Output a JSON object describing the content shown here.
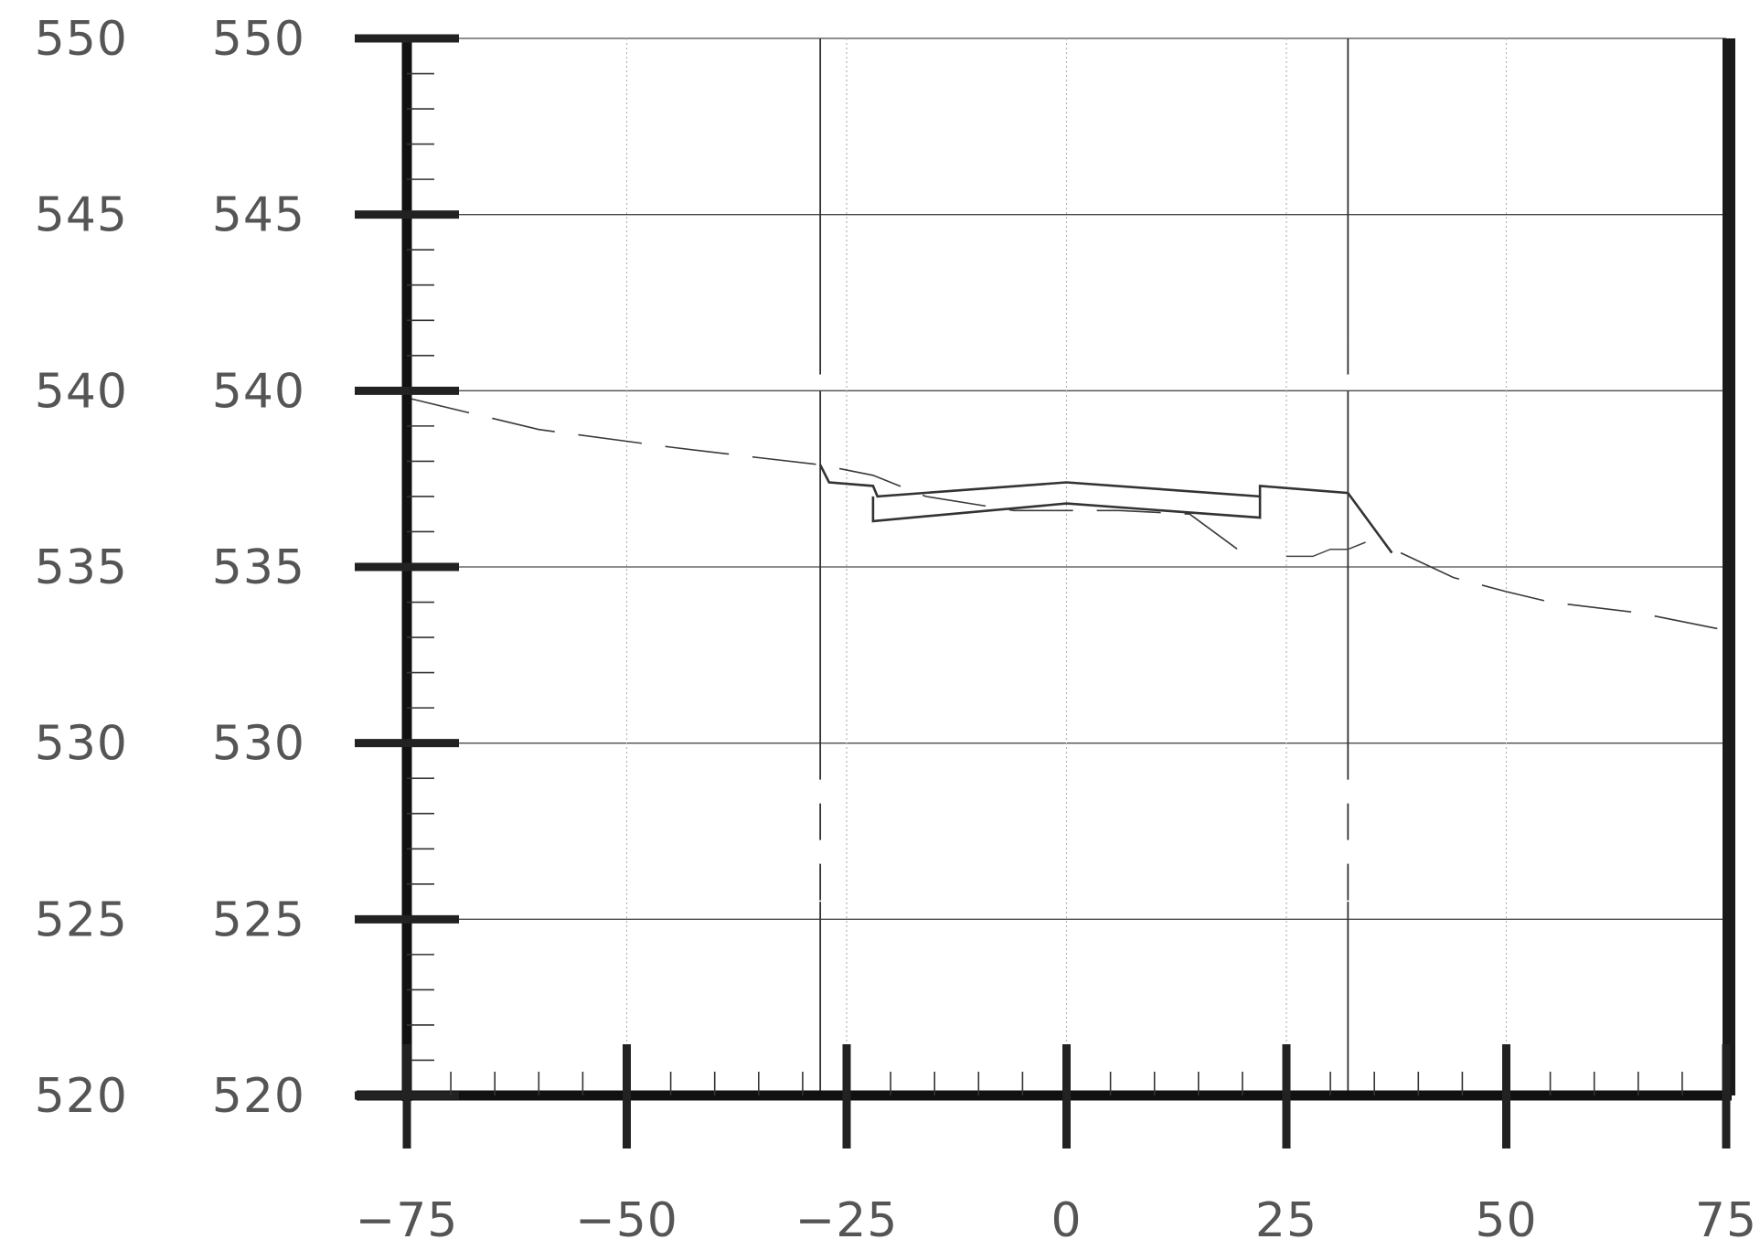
{
  "chart_data": {
    "type": "line",
    "title": "",
    "xlabel": "",
    "ylabel": "",
    "xlim": [
      -75,
      75
    ],
    "ylim": [
      520,
      550
    ],
    "x_ticks": [
      -75,
      -50,
      -25,
      0,
      25,
      50,
      75
    ],
    "x_tick_labels": [
      "−75",
      "−50",
      "−25",
      "0",
      "25",
      "50",
      "75"
    ],
    "y_ticks": [
      520,
      525,
      530,
      535,
      540,
      545,
      550
    ],
    "y_tick_labels": [
      "520",
      "525",
      "530",
      "535",
      "540",
      "545",
      "550"
    ],
    "y_tick_labels_outer": [
      "520",
      "525",
      "530",
      "535",
      "540",
      "545",
      "550"
    ],
    "grid": true,
    "vertical_guides_x": [
      -28,
      32
    ],
    "series": [
      {
        "style": "dashed",
        "points": [
          [
            -75,
            539.8
          ],
          [
            -60,
            538.9
          ],
          [
            -45,
            538.4
          ],
          [
            -35,
            538.1
          ],
          [
            -28,
            537.9
          ],
          [
            -22,
            537.6
          ],
          [
            -16,
            537.0
          ],
          [
            -6,
            536.6
          ],
          [
            6,
            536.6
          ],
          [
            14,
            536.5
          ],
          [
            20,
            535.4
          ]
        ]
      },
      {
        "style": "dashed",
        "points": [
          [
            38,
            535.4
          ],
          [
            44,
            534.7
          ],
          [
            50,
            534.3
          ],
          [
            55,
            534.0
          ],
          [
            65,
            533.7
          ],
          [
            75,
            533.2
          ]
        ]
      },
      {
        "style": "solid",
        "points": [
          [
            -28,
            537.9
          ],
          [
            -27,
            537.4
          ],
          [
            -22,
            537.3
          ],
          [
            -21.5,
            537.0
          ],
          [
            0,
            537.4
          ],
          [
            22,
            537.0
          ],
          [
            22,
            537.3
          ],
          [
            32,
            537.1
          ],
          [
            37,
            535.4
          ]
        ]
      },
      {
        "style": "solid",
        "points": [
          [
            -22,
            537.0
          ],
          [
            -22,
            536.3
          ],
          [
            0,
            536.8
          ],
          [
            22,
            536.4
          ],
          [
            22,
            537.0
          ]
        ]
      },
      {
        "style": "solid",
        "points": [
          [
            25,
            535.3
          ],
          [
            28,
            535.3
          ],
          [
            30,
            535.5
          ],
          [
            32,
            535.5
          ],
          [
            34,
            535.7
          ]
        ]
      }
    ]
  }
}
